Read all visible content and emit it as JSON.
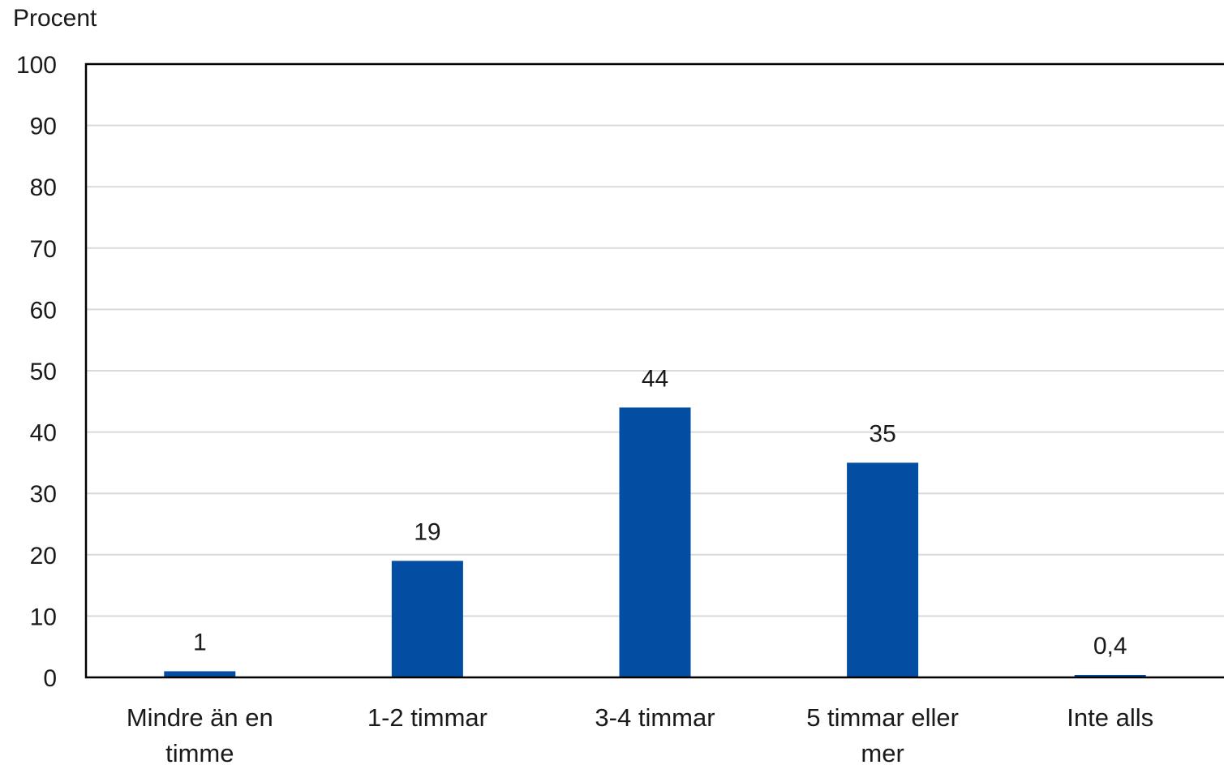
{
  "chart_data": {
    "type": "bar",
    "ylabel": "Procent",
    "xlabel": "",
    "ylim": [
      0,
      100
    ],
    "yticks": [
      0,
      10,
      20,
      30,
      40,
      50,
      60,
      70,
      80,
      90,
      100
    ],
    "grid": true,
    "categories": [
      [
        "Mindre än en",
        "timme"
      ],
      [
        "1-2 timmar"
      ],
      [
        "3-4 timmar"
      ],
      [
        "5 timmar eller",
        "mer"
      ],
      [
        "Inte alls"
      ]
    ],
    "values": [
      1,
      19,
      44,
      35,
      0.4
    ],
    "value_labels": [
      "1",
      "19",
      "44",
      "35",
      "0,4"
    ],
    "bar_color": "#034EA2",
    "grid_color": "#D9D9D9",
    "axis_color": "#000000"
  }
}
